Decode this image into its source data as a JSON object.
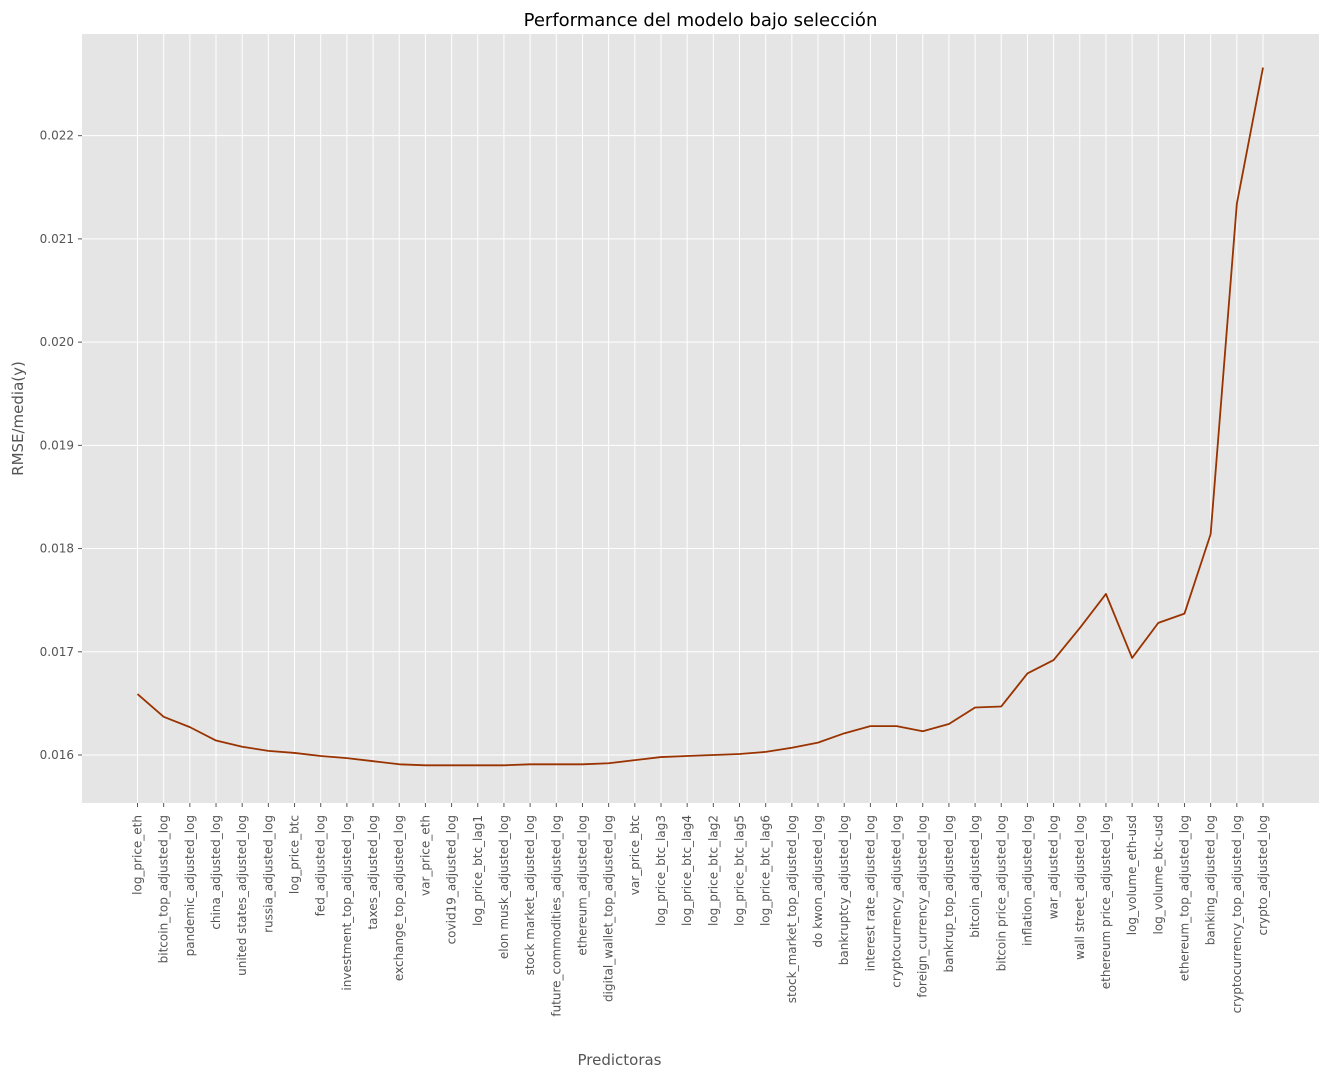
{
  "chart_data": {
    "type": "line",
    "title": "Performance del modelo bajo selección",
    "xlabel": "Predictoras",
    "ylabel": "RMSE/media(y)",
    "ylim": [
      0.015535,
      0.022985
    ],
    "yticks": [
      "0.016",
      "0.017",
      "0.018",
      "0.019",
      "0.020",
      "0.021",
      "0.022"
    ],
    "grid": true,
    "colors": {
      "line": "#993300",
      "plot_bg": "#e5e5e5",
      "grid": "#ffffff",
      "text": "#555555"
    },
    "categories": [
      "log_price_eth",
      "bitcoin_top_adjusted_log",
      "pandemic_adjusted_log",
      "china_adjusted_log",
      "united states_adjusted_log",
      "russia_adjusted_log",
      "log_price_btc",
      "fed_adjusted_log",
      "investment_top_adjusted_log",
      "taxes_adjusted_log",
      "exchange_top_adjusted_log",
      "var_price_eth",
      "covid19_adjusted_log",
      "log_price_btc_lag1",
      "elon musk_adjusted_log",
      "stock market_adjusted_log",
      "future_commodities_adjusted_log",
      "ethereum_adjusted_log",
      "digital_wallet_top_adjusted_log",
      "var_price_btc",
      "log_price_btc_lag3",
      "log_price_btc_lag4",
      "log_price_btc_lag2",
      "log_price_btc_lag5",
      "log_price_btc_lag6",
      "stock_market_top_adjusted_log",
      "do kwon_adjusted_log",
      "bankruptcy_adjusted_log",
      "interest rate_adjusted_log",
      "cryptocurrency_adjusted_log",
      "foreign_currency_adjusted_log",
      "bankrup_top_adjusted_log",
      "bitcoin_adjusted_log",
      "bitcoin price_adjusted_log",
      "inflation_adjusted_log",
      "war_adjusted_log",
      "wall street_adjusted_log",
      "ethereum price_adjusted_log",
      "log_volume_eth-usd",
      "log_volume_btc-usd",
      "ethereum_top_adjusted_log",
      "banking_adjusted_log",
      "cryptocurrency_top_adjusted_log",
      "crypto_adjusted_log"
    ],
    "series": [
      {
        "values": [
          0.01659,
          0.01637,
          0.01627,
          0.01614,
          0.01608,
          0.01604,
          0.01602,
          0.01599,
          0.01597,
          0.01594,
          0.01591,
          0.0159,
          0.0159,
          0.0159,
          0.0159,
          0.01591,
          0.01591,
          0.01591,
          0.01592,
          0.01595,
          0.01598,
          0.01599,
          0.016,
          0.01601,
          0.01603,
          0.01607,
          0.01612,
          0.01621,
          0.01628,
          0.01628,
          0.01623,
          0.0163,
          0.01646,
          0.01647,
          0.01679,
          0.01692,
          0.01723,
          0.01756,
          0.01694,
          0.01728,
          0.01737,
          0.01814,
          0.02134,
          0.02266
        ]
      }
    ]
  }
}
